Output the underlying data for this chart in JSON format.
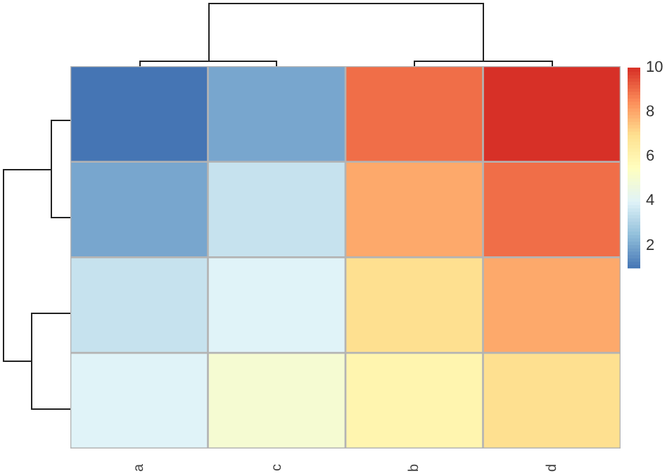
{
  "chart_data": {
    "type": "heatmap",
    "categories": [
      "a",
      "c",
      "b",
      "d"
    ],
    "y_categories": [
      null,
      null,
      null,
      null
    ],
    "cells": [
      [
        1,
        2,
        9,
        10
      ],
      [
        2,
        3.5,
        8,
        9
      ],
      [
        3.5,
        4,
        7,
        8
      ],
      [
        4,
        5,
        6,
        7
      ]
    ],
    "clim": [
      1,
      10
    ],
    "cticks": [
      2,
      4,
      6,
      8,
      10
    ],
    "colors": [
      "#4575b4",
      "#91bfdb",
      "#e0f3f8",
      "#ffffbf",
      "#fee090",
      "#fc8d59",
      "#d73027"
    ]
  }
}
